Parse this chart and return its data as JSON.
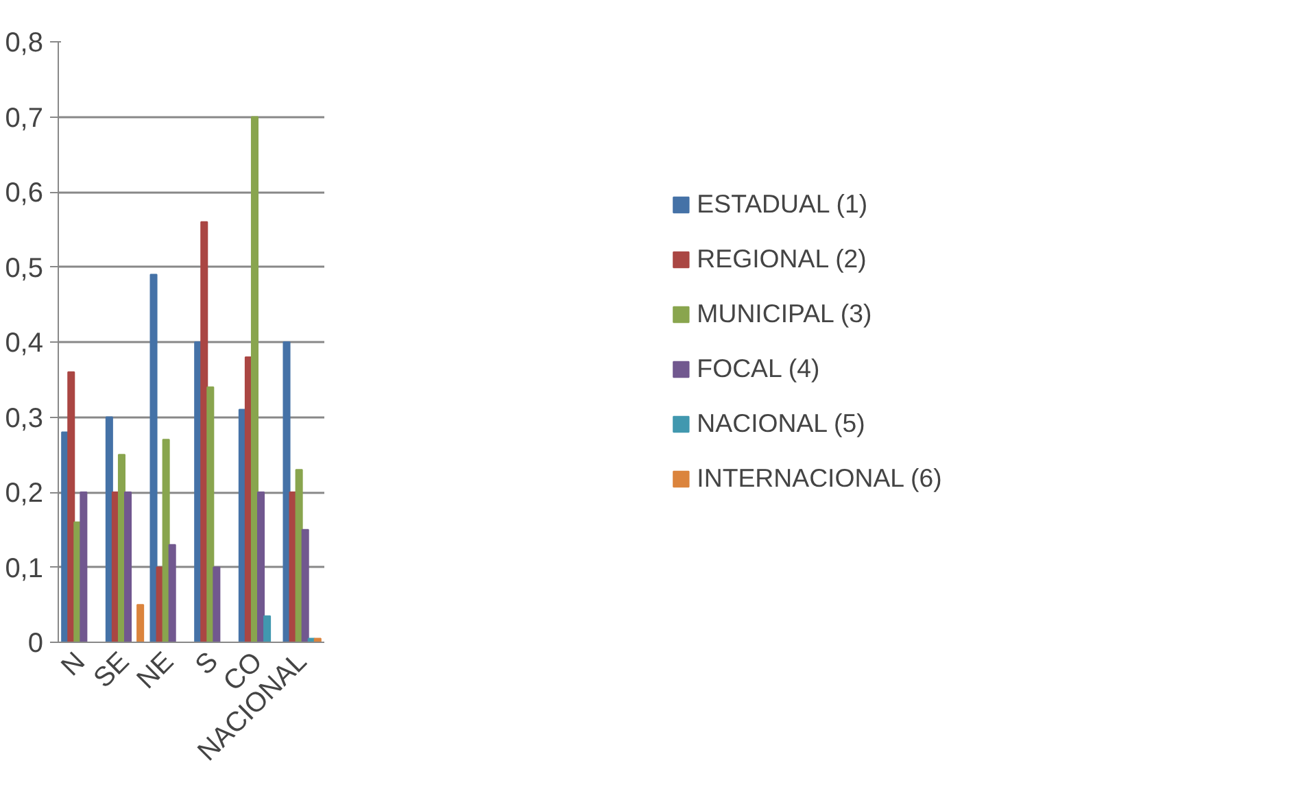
{
  "chart_data": {
    "type": "bar",
    "categories": [
      "N",
      "SE",
      "NE",
      "S",
      "CO",
      "NACIONAL"
    ],
    "series": [
      {
        "name": "ESTADUAL (1)",
        "color": "#4572a7",
        "values": [
          0.28,
          0.3,
          0.49,
          0.4,
          0.31,
          0.4
        ]
      },
      {
        "name": "REGIONAL (2)",
        "color": "#aa4643",
        "values": [
          0.36,
          0.2,
          0.1,
          0.56,
          0.38,
          0.2
        ]
      },
      {
        "name": "MUNICIPAL (3)",
        "color": "#89a54e",
        "values": [
          0.16,
          0.25,
          0.27,
          0.34,
          0.7,
          0.23
        ]
      },
      {
        "name": "FOCAL (4)",
        "color": "#71588f",
        "values": [
          0.2,
          0.2,
          0.13,
          0.1,
          0.2,
          0.15
        ]
      },
      {
        "name": "NACIONAL (5)",
        "color": "#4198af",
        "values": [
          0,
          0,
          0,
          0,
          0.035,
          0.005
        ]
      },
      {
        "name": "INTERNACIONAL (6)",
        "color": "#db843d",
        "values": [
          0,
          0.05,
          0,
          0,
          0,
          0.005
        ]
      }
    ],
    "ylim": [
      0,
      0.8
    ],
    "yticks": [
      0,
      {
        "value": 0.1,
        "label": "0,1"
      },
      {
        "value": 0.2,
        "label": "0,2"
      },
      {
        "value": 0.3,
        "label": "0,3"
      },
      {
        "value": 0.4,
        "label": "0,4"
      },
      {
        "value": 0.5,
        "label": "0,5"
      },
      {
        "value": 0.6,
        "label": "0,6"
      },
      {
        "value": 0.7,
        "label": "0,7"
      },
      {
        "value": 0.8,
        "label": "0,8"
      }
    ],
    "grid": "y",
    "legend": "right"
  }
}
